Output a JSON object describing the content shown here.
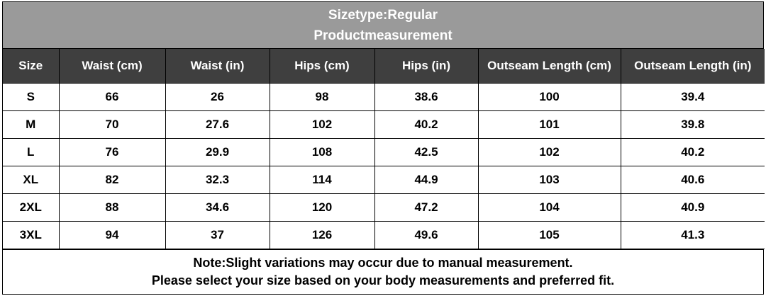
{
  "title": {
    "line1": "Sizetype:Regular",
    "line2": "Productmeasurement"
  },
  "colors": {
    "title_background": "#9a9a9a",
    "header_background": "#3f3f3f",
    "header_text": "#ffffff",
    "border": "#000000"
  },
  "table": {
    "headers": [
      "Size",
      "Waist (cm)",
      "Waist (in)",
      "Hips (cm)",
      "Hips (in)",
      "Outseam Length (cm)",
      "Outseam Length (in)"
    ],
    "rows": [
      [
        "S",
        "66",
        "26",
        "98",
        "38.6",
        "100",
        "39.4"
      ],
      [
        "M",
        "70",
        "27.6",
        "102",
        "40.2",
        "101",
        "39.8"
      ],
      [
        "L",
        "76",
        "29.9",
        "108",
        "42.5",
        "102",
        "40.2"
      ],
      [
        "XL",
        "82",
        "32.3",
        "114",
        "44.9",
        "103",
        "40.6"
      ],
      [
        "2XL",
        "88",
        "34.6",
        "120",
        "47.2",
        "104",
        "40.9"
      ],
      [
        "3XL",
        "94",
        "37",
        "126",
        "49.6",
        "105",
        "41.3"
      ]
    ]
  },
  "note": {
    "line1": "Note:Slight variations may occur due to manual measurement.",
    "line2": "Please select your size based on your body measurements and preferred fit."
  }
}
